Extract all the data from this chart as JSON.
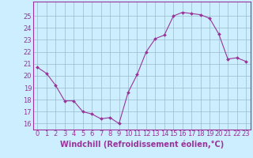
{
  "x": [
    0,
    1,
    2,
    3,
    4,
    5,
    6,
    7,
    8,
    9,
    10,
    11,
    12,
    13,
    14,
    15,
    16,
    17,
    18,
    19,
    20,
    21,
    22,
    23
  ],
  "y": [
    20.7,
    20.2,
    19.2,
    17.9,
    17.9,
    17.0,
    16.8,
    16.4,
    16.5,
    16.0,
    18.6,
    20.1,
    22.0,
    23.1,
    23.4,
    25.0,
    25.3,
    25.2,
    25.1,
    24.8,
    23.5,
    21.4,
    21.5,
    21.2
  ],
  "line_color": "#993399",
  "marker": "D",
  "marker_size": 2.0,
  "background_color": "#cceeff",
  "grid_color": "#99bbcc",
  "xlabel": "Windchill (Refroidissement éolien,°C)",
  "xlabel_color": "#993399",
  "ylim": [
    15.5,
    26.2
  ],
  "xlim": [
    -0.5,
    23.5
  ],
  "yticks": [
    16,
    17,
    18,
    19,
    20,
    21,
    22,
    23,
    24,
    25
  ],
  "xticks": [
    0,
    1,
    2,
    3,
    4,
    5,
    6,
    7,
    8,
    9,
    10,
    11,
    12,
    13,
    14,
    15,
    16,
    17,
    18,
    19,
    20,
    21,
    22,
    23
  ],
  "tick_fontsize": 6,
  "xlabel_fontsize": 7,
  "tick_color": "#993399",
  "axis_color": "#993399",
  "spine_color": "#993399"
}
